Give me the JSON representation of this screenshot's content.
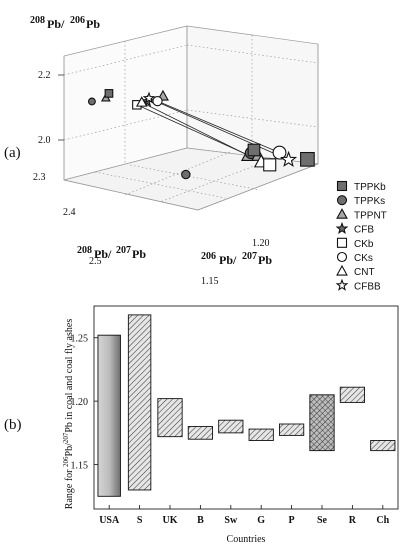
{
  "figure_labels": {
    "a": "(a)",
    "b": "(b)"
  },
  "chart_data": [
    {
      "panel": "(a)",
      "type": "scatter",
      "subtype": "3d-scatter",
      "title": "",
      "axes": {
        "z": {
          "label_main": "Pb/",
          "label_sup1": "208",
          "label_sup2": "206",
          "label_tail": "Pb",
          "ticks": [
            "2.0",
            "2.2"
          ],
          "range": [
            1.9,
            2.3
          ]
        },
        "x": {
          "label_main": "Pb/",
          "label_sup1": "208",
          "label_sup2": "207",
          "label_tail": "Pb",
          "ticks": [
            "2.3",
            "2.4",
            "2.5"
          ],
          "range": [
            2.3,
            2.5
          ]
        },
        "y": {
          "label_main": "Pb/",
          "label_sup1": "206",
          "label_sup2": "207",
          "label_tail": "Pb",
          "ticks": [
            "1.15",
            "1.20"
          ],
          "range": [
            1.15,
            1.22
          ]
        }
      },
      "legend": {
        "placement": "right",
        "entries": [
          {
            "label": "TPPKb",
            "marker": "square",
            "fill": "#6e6e6e"
          },
          {
            "label": "TPPKs",
            "marker": "circle",
            "fill": "#6e6e6e"
          },
          {
            "label": "TPPNT",
            "marker": "triangle",
            "fill": "#a8a8a8"
          },
          {
            "label": "CFB",
            "marker": "star",
            "fill": "#6e6e6e"
          },
          {
            "label": "CKb",
            "marker": "square",
            "fill": "#ffffff"
          },
          {
            "label": "CKs",
            "marker": "circle",
            "fill": "#ffffff"
          },
          {
            "label": "CNT",
            "marker": "triangle",
            "fill": "#ffffff"
          },
          {
            "label": "CFBB",
            "marker": "star",
            "fill": "#ffffff"
          }
        ]
      },
      "series": [
        {
          "name": "TPPKb",
          "points": [
            {
              "x": 2.36,
              "y": 1.203,
              "z": 2.045
            },
            {
              "x": 2.31,
              "y": 1.214,
              "z": 2.035
            },
            {
              "x": 2.46,
              "y": 1.16,
              "z": 2.195
            }
          ]
        },
        {
          "name": "TPPKs",
          "points": [
            {
              "x": 2.37,
              "y": 1.205,
              "z": 2.03
            },
            {
              "x": 2.44,
              "y": 1.195,
              "z": 1.93
            },
            {
              "x": 2.48,
              "y": 1.158,
              "z": 2.16
            }
          ]
        },
        {
          "name": "TPPNT",
          "points": [
            {
              "x": 2.38,
              "y": 1.207,
              "z": 2.015
            },
            {
              "x": 2.37,
              "y": 1.209,
              "z": 2.02
            },
            {
              "x": 2.47,
              "y": 1.162,
              "z": 2.175
            },
            {
              "x": 2.42,
              "y": 1.175,
              "z": 2.2
            }
          ]
        },
        {
          "name": "CFB",
          "points": [
            {
              "x": 2.43,
              "y": 1.17,
              "z": 2.18
            }
          ]
        },
        {
          "name": "CKb",
          "points": [
            {
              "x": 2.35,
              "y": 1.208,
              "z": 2.0
            },
            {
              "x": 2.44,
              "y": 1.168,
              "z": 2.165
            }
          ]
        },
        {
          "name": "CKs",
          "points": [
            {
              "x": 2.33,
              "y": 1.206,
              "z": 2.05
            },
            {
              "x": 2.42,
              "y": 1.172,
              "z": 2.185
            }
          ]
        },
        {
          "name": "CNT",
          "points": [
            {
              "x": 2.36,
              "y": 1.207,
              "z": 2.005
            },
            {
              "x": 2.43,
              "y": 1.167,
              "z": 2.178
            }
          ]
        },
        {
          "name": "CFBB",
          "points": [
            {
              "x": 2.33,
              "y": 1.211,
              "z": 2.025
            },
            {
              "x": 2.43,
              "y": 1.171,
              "z": 2.19
            }
          ]
        }
      ],
      "links": [
        {
          "from": [
            "CKb",
            1
          ],
          "to": [
            "CKb",
            0
          ]
        },
        {
          "from": [
            "CKs",
            1
          ],
          "to": [
            "CKs",
            0
          ]
        },
        {
          "from": [
            "CFBB",
            1
          ],
          "to": [
            "CFBB",
            0
          ]
        },
        {
          "from": [
            "CNT",
            1
          ],
          "to": [
            "CNT",
            0
          ]
        }
      ],
      "grid": true
    },
    {
      "panel": "(b)",
      "type": "bar",
      "subtype": "floating-range",
      "title": "",
      "xlabel": "Countries",
      "ylabel_parts": [
        "Range for ",
        "206",
        "Pb/",
        "207",
        "Pb in coal and coal fly ashes"
      ],
      "ylim": [
        1.115,
        1.275
      ],
      "yticks": [
        1.15,
        1.2,
        1.25
      ],
      "ytick_labels": [
        "1.15",
        "1.20",
        "1.25"
      ],
      "categories": [
        "USA",
        "S",
        "UK",
        "B",
        "Sw",
        "G",
        "P",
        "Se",
        "R",
        "Ch"
      ],
      "ranges": [
        [
          1.125,
          1.252
        ],
        [
          1.13,
          1.268
        ],
        [
          1.172,
          1.202
        ],
        [
          1.17,
          1.18
        ],
        [
          1.175,
          1.185
        ],
        [
          1.169,
          1.178
        ],
        [
          1.173,
          1.182
        ],
        [
          1.161,
          1.205
        ],
        [
          1.199,
          1.211
        ],
        [
          1.161,
          1.169
        ]
      ],
      "fills": [
        "gradient",
        "hatch",
        "hatch",
        "hatch",
        "hatch",
        "hatch",
        "hatch",
        "crosshatch",
        "hatch",
        "hatch"
      ],
      "grid": false
    }
  ]
}
